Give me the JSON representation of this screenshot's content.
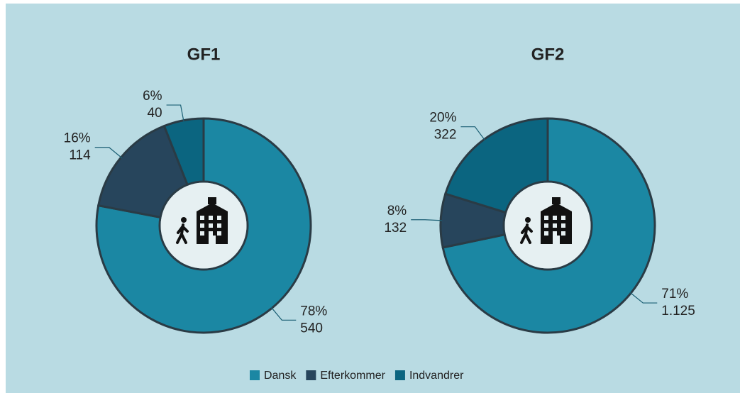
{
  "chart_data": [
    {
      "type": "donut",
      "title": "GF1",
      "categories": [
        "Dansk",
        "Efterkommer",
        "Indvandrer"
      ],
      "values": [
        78,
        16,
        6
      ],
      "value_labels": [
        "78%",
        "16%",
        "6%"
      ],
      "counts": [
        540,
        114,
        40
      ],
      "colors": [
        "#1b87a3",
        "#27455c",
        "#0b6580"
      ]
    },
    {
      "type": "donut",
      "title": "GF2",
      "categories": [
        "Dansk",
        "Efterkommer",
        "Indvandrer"
      ],
      "values": [
        71,
        8,
        20
      ],
      "value_labels": [
        "71%",
        "8%",
        "20%"
      ],
      "counts": [
        1125,
        132,
        322
      ],
      "count_labels": [
        "1.125",
        "132",
        "322"
      ],
      "colors": [
        "#1b87a3",
        "#27455c",
        "#0b6580"
      ]
    }
  ]
}
